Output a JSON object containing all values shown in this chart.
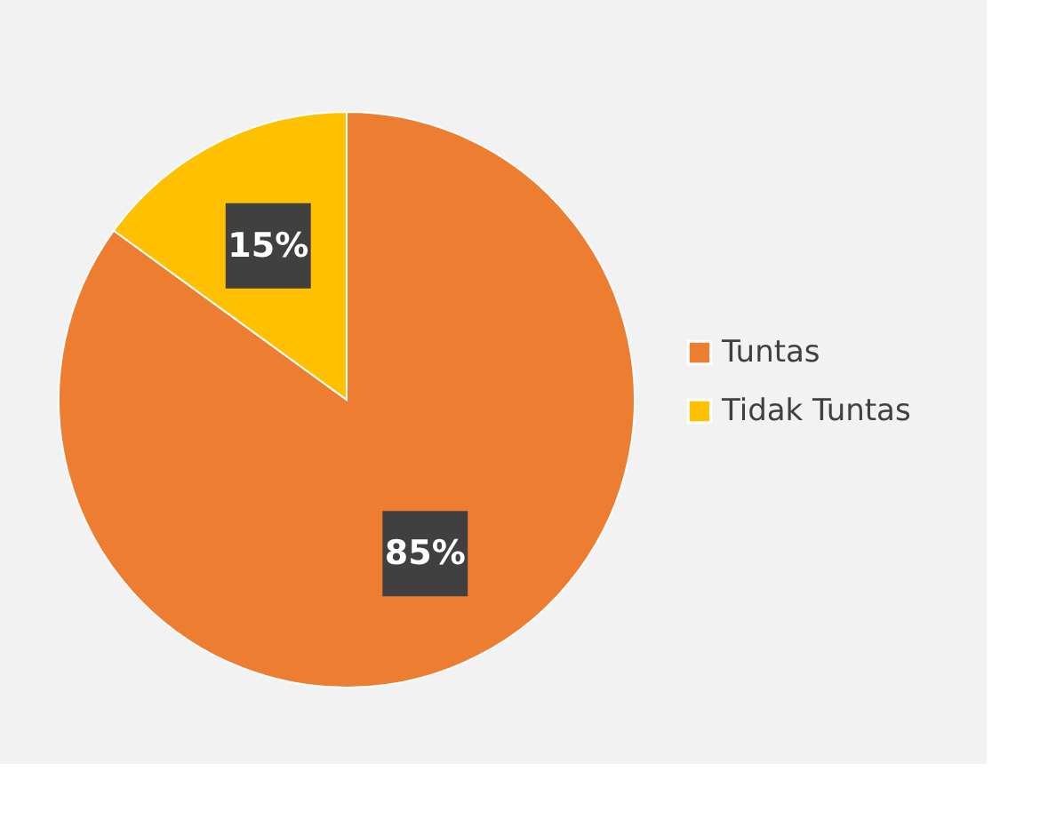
{
  "chart_data": {
    "type": "pie",
    "categories": [
      "Tuntas",
      "Tidak Tuntas"
    ],
    "values": [
      85,
      15
    ],
    "colors": [
      "#ed7d31",
      "#ffc000"
    ],
    "value_labels": [
      "85%",
      "15%"
    ],
    "legend": "right"
  }
}
